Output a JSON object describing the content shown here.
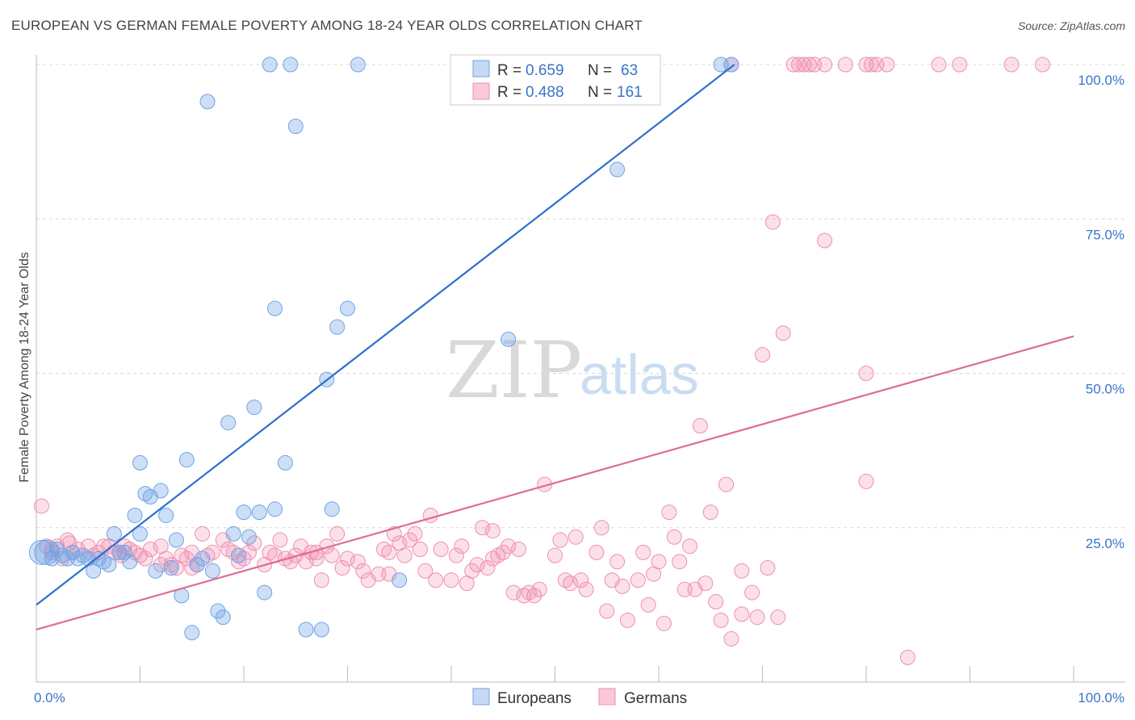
{
  "title": "EUROPEAN VS GERMAN FEMALE POVERTY AMONG 18-24 YEAR OLDS CORRELATION CHART",
  "source": "Source: ZipAtlas.com",
  "watermark": {
    "part1": "ZIP",
    "part2": "atlas"
  },
  "chart_data": {
    "type": "scatter",
    "xlabel": "",
    "ylabel": "Female Poverty Among 18-24 Year Olds",
    "xlim": [
      0,
      100
    ],
    "ylim": [
      0,
      100
    ],
    "x_tick_labels": [
      "0.0%",
      "100.0%"
    ],
    "y_tick_labels": [
      "25.0%",
      "50.0%",
      "75.0%",
      "100.0%"
    ],
    "y_ticks": [
      25,
      50,
      75,
      100
    ],
    "grid": true,
    "legend_position": "top-center",
    "colors": {
      "Europeans": "#6fa3e6",
      "Germans": "#f08fb0",
      "Europeans_line": "#2d6fcc",
      "Germans_line": "#e06b98"
    },
    "legend": [
      {
        "series": "Europeans",
        "r_label": "R =",
        "r": "0.659",
        "n_label": "N =",
        "n": "63"
      },
      {
        "series": "Germans",
        "r_label": "R =",
        "r": "0.488",
        "n_label": "N =",
        "n": "161"
      }
    ],
    "series": [
      {
        "name": "Europeans",
        "trend": {
          "x": [
            0,
            67.3
          ],
          "y": [
            12.5,
            100
          ]
        },
        "points": [
          [
            0.5,
            21
          ],
          [
            1,
            21
          ],
          [
            1.5,
            20
          ],
          [
            2,
            21.5
          ],
          [
            2.5,
            20.5
          ],
          [
            3,
            20
          ],
          [
            3.5,
            21
          ],
          [
            4,
            20
          ],
          [
            4.5,
            20.5
          ],
          [
            5,
            20
          ],
          [
            5.5,
            18
          ],
          [
            6,
            20
          ],
          [
            6.5,
            19.5
          ],
          [
            7,
            19
          ],
          [
            7.5,
            24
          ],
          [
            8,
            21
          ],
          [
            8.5,
            21
          ],
          [
            9,
            19.5
          ],
          [
            9.5,
            27
          ],
          [
            10,
            24
          ],
          [
            10,
            35.5
          ],
          [
            10.5,
            30.5
          ],
          [
            11,
            30
          ],
          [
            11.5,
            18
          ],
          [
            12,
            31
          ],
          [
            12.5,
            27
          ],
          [
            13,
            18.5
          ],
          [
            13.5,
            23
          ],
          [
            14,
            14
          ],
          [
            14.5,
            36
          ],
          [
            15,
            8
          ],
          [
            15.5,
            19
          ],
          [
            16,
            20
          ],
          [
            16.5,
            94
          ],
          [
            17,
            18
          ],
          [
            17.5,
            11.5
          ],
          [
            18,
            10.5
          ],
          [
            18.5,
            42
          ],
          [
            19,
            24
          ],
          [
            19.5,
            20.5
          ],
          [
            20,
            27.5
          ],
          [
            20.5,
            23.5
          ],
          [
            21,
            44.5
          ],
          [
            21.5,
            27.5
          ],
          [
            22,
            14.5
          ],
          [
            22.5,
            100
          ],
          [
            23,
            28
          ],
          [
            23,
            60.5
          ],
          [
            24,
            35.5
          ],
          [
            24.5,
            100
          ],
          [
            25,
            90
          ],
          [
            26,
            8.5
          ],
          [
            27.5,
            8.5
          ],
          [
            28,
            49
          ],
          [
            28.5,
            28
          ],
          [
            29,
            57.5
          ],
          [
            30,
            60.5
          ],
          [
            31,
            100
          ],
          [
            35,
            16.5
          ],
          [
            45.5,
            55.5
          ],
          [
            56,
            83
          ],
          [
            66,
            100
          ],
          [
            67,
            100
          ]
        ]
      },
      {
        "name": "Germans",
        "trend": {
          "x": [
            0,
            100
          ],
          "y": [
            8.5,
            56
          ]
        },
        "points": [
          [
            0.5,
            28.5
          ],
          [
            1,
            22
          ],
          [
            1.5,
            21
          ],
          [
            2,
            22
          ],
          [
            3,
            23
          ],
          [
            3.5,
            21
          ],
          [
            4,
            21.5
          ],
          [
            5,
            22
          ],
          [
            5.5,
            20.5
          ],
          [
            6,
            21
          ],
          [
            7,
            22
          ],
          [
            7.5,
            21
          ],
          [
            8,
            21
          ],
          [
            8.5,
            22
          ],
          [
            9,
            21.5
          ],
          [
            9.5,
            21
          ],
          [
            10,
            20.5
          ],
          [
            10.5,
            20
          ],
          [
            11,
            21.5
          ],
          [
            12,
            22
          ],
          [
            12.5,
            20
          ],
          [
            13,
            19
          ],
          [
            13.5,
            18.5
          ],
          [
            14,
            20.5
          ],
          [
            14.5,
            20
          ],
          [
            15,
            21
          ],
          [
            15.5,
            19
          ],
          [
            16,
            24
          ],
          [
            16.5,
            20.5
          ],
          [
            17,
            21
          ],
          [
            18,
            23
          ],
          [
            18.5,
            21.5
          ],
          [
            19,
            21
          ],
          [
            19.5,
            19.5
          ],
          [
            20,
            20
          ],
          [
            20.5,
            21
          ],
          [
            21,
            22.5
          ],
          [
            22,
            19
          ],
          [
            22.5,
            21
          ],
          [
            23,
            20.5
          ],
          [
            23.5,
            23
          ],
          [
            24,
            20
          ],
          [
            24.5,
            19.5
          ],
          [
            25,
            20.5
          ],
          [
            25.5,
            22
          ],
          [
            26,
            19.5
          ],
          [
            26.5,
            21
          ],
          [
            27,
            20
          ],
          [
            27.5,
            16.5
          ],
          [
            28,
            22
          ],
          [
            28.5,
            20.5
          ],
          [
            29,
            24
          ],
          [
            29.5,
            18.5
          ],
          [
            30,
            20
          ],
          [
            31,
            19.5
          ],
          [
            31.5,
            18
          ],
          [
            32,
            16.5
          ],
          [
            33,
            17.5
          ],
          [
            33.5,
            21.5
          ],
          [
            34,
            21
          ],
          [
            34.5,
            24
          ],
          [
            35,
            22.5
          ],
          [
            35.5,
            20.5
          ],
          [
            36,
            23
          ],
          [
            36.5,
            24
          ],
          [
            37,
            21.5
          ],
          [
            37.5,
            18
          ],
          [
            38,
            27
          ],
          [
            38.5,
            16.5
          ],
          [
            39,
            21.5
          ],
          [
            40,
            16.5
          ],
          [
            40.5,
            20.5
          ],
          [
            41,
            22
          ],
          [
            41.5,
            16
          ],
          [
            42,
            18
          ],
          [
            42.5,
            19
          ],
          [
            43,
            25
          ],
          [
            43.5,
            18.5
          ],
          [
            44,
            24.5
          ],
          [
            44.5,
            20.5
          ],
          [
            45,
            21
          ],
          [
            45.5,
            22
          ],
          [
            46,
            14.5
          ],
          [
            46.5,
            21.5
          ],
          [
            47,
            14
          ],
          [
            47.5,
            14.5
          ],
          [
            48,
            14
          ],
          [
            48.5,
            15
          ],
          [
            49,
            32
          ],
          [
            50,
            20.5
          ],
          [
            50.5,
            23
          ],
          [
            51,
            16.5
          ],
          [
            51.5,
            16
          ],
          [
            52,
            23.5
          ],
          [
            52.5,
            16.5
          ],
          [
            53,
            15
          ],
          [
            54,
            21
          ],
          [
            54.5,
            25
          ],
          [
            55,
            11.5
          ],
          [
            55.5,
            16.5
          ],
          [
            56,
            19.5
          ],
          [
            56.5,
            15.5
          ],
          [
            57,
            10
          ],
          [
            58,
            16.5
          ],
          [
            58.5,
            21
          ],
          [
            59,
            12.5
          ],
          [
            59.5,
            17.5
          ],
          [
            60,
            19.5
          ],
          [
            60.5,
            9.5
          ],
          [
            61,
            27.5
          ],
          [
            61.5,
            23.5
          ],
          [
            62,
            19.5
          ],
          [
            62.5,
            15
          ],
          [
            63,
            22
          ],
          [
            63.5,
            15
          ],
          [
            64,
            41.5
          ],
          [
            64.5,
            16
          ],
          [
            65,
            27.5
          ],
          [
            65.5,
            13
          ],
          [
            66,
            10
          ],
          [
            66.5,
            32
          ],
          [
            67,
            100
          ],
          [
            67,
            7
          ],
          [
            68,
            18
          ],
          [
            68,
            11
          ],
          [
            69,
            14.5
          ],
          [
            69.5,
            10.5
          ],
          [
            70,
            53
          ],
          [
            70.5,
            18.5
          ],
          [
            71,
            74.5
          ],
          [
            71.5,
            10.5
          ],
          [
            72,
            56.5
          ],
          [
            73,
            100
          ],
          [
            73.5,
            100
          ],
          [
            74,
            100
          ],
          [
            74.5,
            100
          ],
          [
            75,
            100
          ],
          [
            76,
            71.5
          ],
          [
            76,
            100
          ],
          [
            78,
            100
          ],
          [
            80,
            50
          ],
          [
            80,
            32.5
          ],
          [
            80,
            100
          ],
          [
            80.5,
            100
          ],
          [
            81,
            100
          ],
          [
            82,
            100
          ],
          [
            84,
            4
          ],
          [
            87,
            100
          ],
          [
            89,
            100
          ],
          [
            94,
            100
          ],
          [
            97,
            100
          ],
          [
            1.5,
            21.5
          ],
          [
            2.5,
            20
          ],
          [
            3.2,
            22.5
          ],
          [
            6.5,
            22
          ],
          [
            8.2,
            20.5
          ],
          [
            12,
            19
          ],
          [
            15,
            18.5
          ],
          [
            27,
            21
          ],
          [
            34,
            17.5
          ],
          [
            44,
            20
          ]
        ]
      }
    ]
  },
  "bottom_legend": [
    "Europeans",
    "Germans"
  ]
}
